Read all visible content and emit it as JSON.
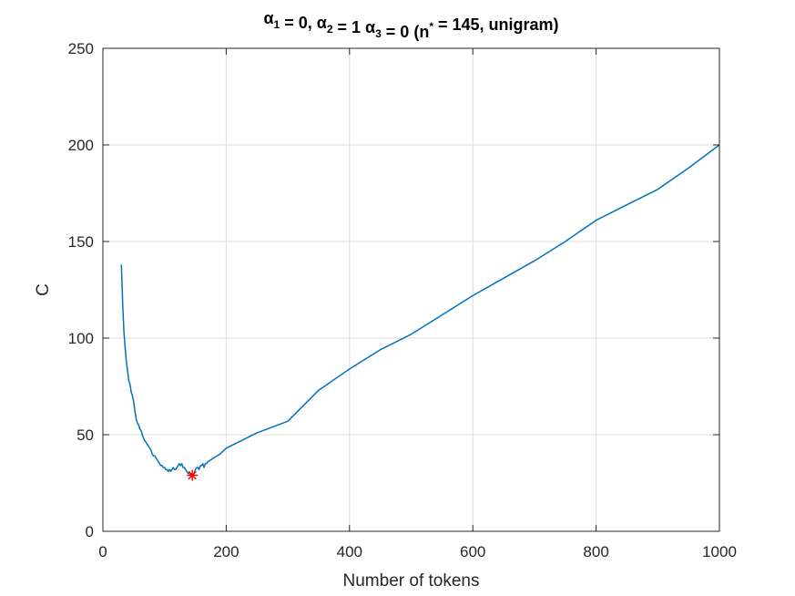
{
  "chart_data": {
    "type": "line",
    "title": {
      "parts": [
        {
          "text": "α",
          "sub": false
        },
        {
          "text": "1",
          "sub": true
        },
        {
          "text": " = 0, ",
          "sub": false
        },
        {
          "text": "α",
          "sub": false
        },
        {
          "text": "2",
          "sub": true
        },
        {
          "text": " = 1 ",
          "sub": false
        },
        {
          "text": "α",
          "sub": false
        },
        {
          "text": "3",
          "sub": true
        },
        {
          "text": " = 0 (n",
          "sub": false
        },
        {
          "text": "*",
          "sup": true
        },
        {
          "text": " = 145, unigram)",
          "sub": false
        }
      ]
    },
    "xlabel": "Number of tokens",
    "ylabel": "C",
    "xlim": [
      0,
      1000
    ],
    "ylim": [
      0,
      250
    ],
    "xticks": [
      0,
      200,
      400,
      600,
      800,
      1000
    ],
    "yticks": [
      0,
      50,
      100,
      150,
      200,
      250
    ],
    "grid": true,
    "series": [
      {
        "color": "#0072BD",
        "x": [
          30,
          32,
          34,
          36,
          38,
          40,
          42,
          44,
          46,
          48,
          50,
          52,
          54,
          56,
          58,
          60,
          62,
          64,
          66,
          68,
          70,
          72,
          74,
          76,
          78,
          80,
          82,
          84,
          86,
          88,
          90,
          92,
          94,
          96,
          98,
          100,
          102,
          104,
          106,
          108,
          110,
          112,
          114,
          116,
          118,
          120,
          122,
          124,
          126,
          128,
          130,
          132,
          134,
          136,
          138,
          140,
          142,
          145,
          148,
          150,
          152,
          154,
          156,
          158,
          160,
          162,
          164,
          166,
          168,
          170,
          175,
          180,
          190,
          200,
          225,
          250,
          300,
          350,
          400,
          450,
          500,
          550,
          600,
          650,
          700,
          750,
          800,
          850,
          900,
          950,
          1000
        ],
        "y": [
          138,
          118,
          104,
          95,
          88,
          83,
          78,
          76,
          72,
          70,
          67,
          62,
          58,
          56,
          55,
          53,
          52,
          50,
          48,
          47,
          46,
          45,
          44,
          43,
          42,
          40,
          39,
          39,
          38,
          37,
          36,
          35,
          34,
          34,
          33,
          33,
          32,
          32,
          31,
          32,
          31,
          32,
          33,
          32,
          32,
          33,
          34,
          35,
          34,
          35,
          33,
          33,
          32,
          31,
          30,
          30,
          29,
          29,
          30,
          32,
          33,
          33,
          32,
          34,
          34,
          35,
          33,
          35,
          35,
          36,
          37,
          38,
          40,
          43,
          47,
          51,
          57,
          73,
          84,
          94,
          102,
          112,
          122,
          131,
          140,
          150,
          161,
          169,
          177,
          188,
          200
        ]
      },
      {
        "color": "#ff0000",
        "marker": "*",
        "x": [
          145
        ],
        "y": [
          29
        ]
      }
    ]
  }
}
